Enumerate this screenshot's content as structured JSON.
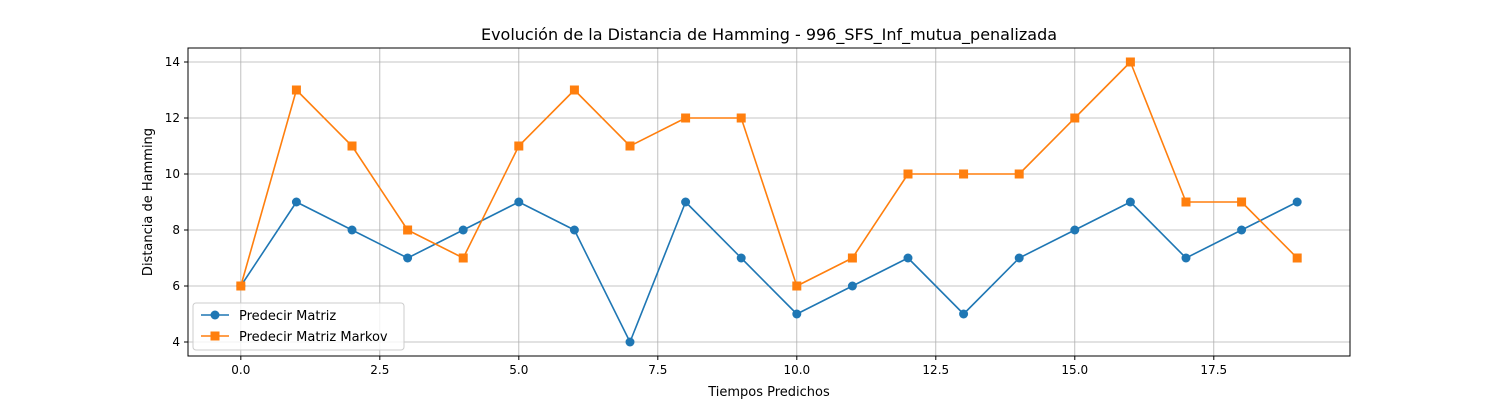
{
  "chart_data": {
    "type": "line",
    "title": "Evolución de la Distancia de Hamming - 996_SFS_Inf_mutua_penalizada",
    "xlabel": "Tiempos Predichos",
    "ylabel": "Distancia de Hamming",
    "x": [
      0,
      1,
      2,
      3,
      4,
      5,
      6,
      7,
      8,
      9,
      10,
      11,
      12,
      13,
      14,
      15,
      16,
      17,
      18,
      19
    ],
    "xlim": [
      -0.95,
      19.95
    ],
    "ylim": [
      3.5,
      14.5
    ],
    "xticks": [
      0.0,
      2.5,
      5.0,
      7.5,
      10.0,
      12.5,
      15.0,
      17.5
    ],
    "xtick_labels": [
      "0.0",
      "2.5",
      "5.0",
      "7.5",
      "10.0",
      "12.5",
      "15.0",
      "17.5"
    ],
    "yticks": [
      4,
      6,
      8,
      10,
      12,
      14
    ],
    "ytick_labels": [
      "4",
      "6",
      "8",
      "10",
      "12",
      "14"
    ],
    "grid": true,
    "legend_position": "lower-left",
    "series": [
      {
        "name": "Predecir Matriz",
        "color": "#1f77b4",
        "marker": "circle",
        "values": [
          6,
          9,
          8,
          7,
          8,
          9,
          8,
          4,
          9,
          7,
          5,
          6,
          7,
          5,
          7,
          8,
          9,
          7,
          8,
          9
        ]
      },
      {
        "name": "Predecir Matriz Markov",
        "color": "#ff7f0e",
        "marker": "square",
        "values": [
          6,
          13,
          11,
          8,
          7,
          11,
          13,
          11,
          12,
          12,
          6,
          7,
          10,
          10,
          10,
          12,
          14,
          9,
          9,
          7
        ]
      }
    ]
  }
}
